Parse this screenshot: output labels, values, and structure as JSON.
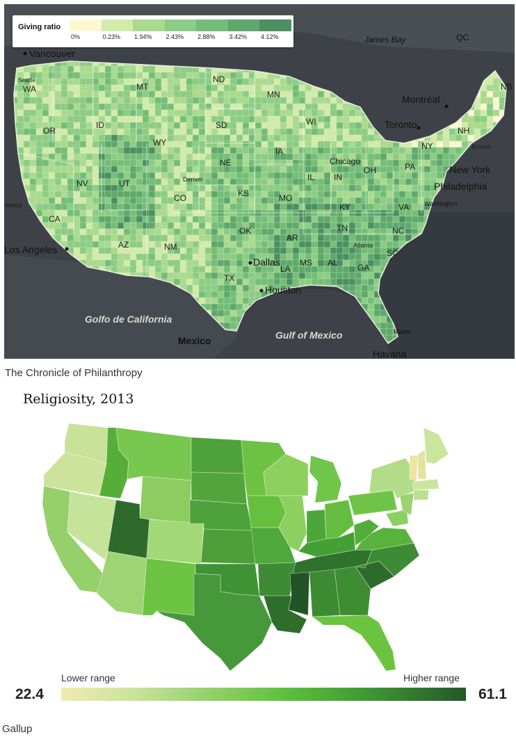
{
  "top_map": {
    "legend_title": "Giving ratio",
    "ticks": [
      "0%",
      "0.23%",
      "1.94%",
      "2.43%",
      "2.88%",
      "3.42%",
      "4.12%"
    ],
    "colors": [
      "#fcf8d2",
      "#d2ebab",
      "#a9da8e",
      "#8ccc85",
      "#74bd78",
      "#5ea86d",
      "#4b8f62"
    ],
    "place_labels": {
      "vancouver": "Vancouver",
      "seattle": "Seattle",
      "wa": "WA",
      "mt": "MT",
      "nd": "ND",
      "mn": "MN",
      "montreal": "Montréal",
      "toronto": "Toronto",
      "qc": "QC",
      "nb": "NB",
      "james_bay": "James Bay",
      "or": "OR",
      "id": "ID",
      "wy": "WY",
      "sd": "SD",
      "wi": "WI",
      "ny": "NY",
      "nh": "NH",
      "boston": "Boston",
      "ne": "NE",
      "ia": "IA",
      "chicago": "Chicago",
      "oh": "OH",
      "pa": "PA",
      "new_york": "New York",
      "nv": "NV",
      "ut": "UT",
      "denver": "Denver",
      "il": "IL",
      "in": "IN",
      "philadelphia": "Philadelphia",
      "co": "CO",
      "ks": "KS",
      "mo": "MO",
      "ky": "KY",
      "va": "VA",
      "washington": "Washington",
      "san_francisco": "ncisco",
      "ca": "CA",
      "ok": "OK",
      "tn": "TN",
      "nc": "NC",
      "az": "AZ",
      "nm": "NM",
      "ar": "AR",
      "atlanta": "Atlanta",
      "sc": "SC",
      "los_angeles": "Los Angeles",
      "dallas": "Dallas",
      "la": "LA",
      "ms": "MS",
      "al": "AL",
      "ga": "GA",
      "tx": "TX",
      "houston": "Houston",
      "golfo": "Golfo de California",
      "gulf": "Gulf of Mexico",
      "mexico": "Mexico",
      "miami": "Miami",
      "havana": "Havana"
    },
    "credit": "The Chronicle of Philanthropy"
  },
  "bottom_map": {
    "title": "Religiosity, 2013",
    "lower_label": "Lower range",
    "higher_label": "Higher range",
    "min_value": "22.4",
    "max_value": "61.1",
    "credit": "Gallup"
  }
}
